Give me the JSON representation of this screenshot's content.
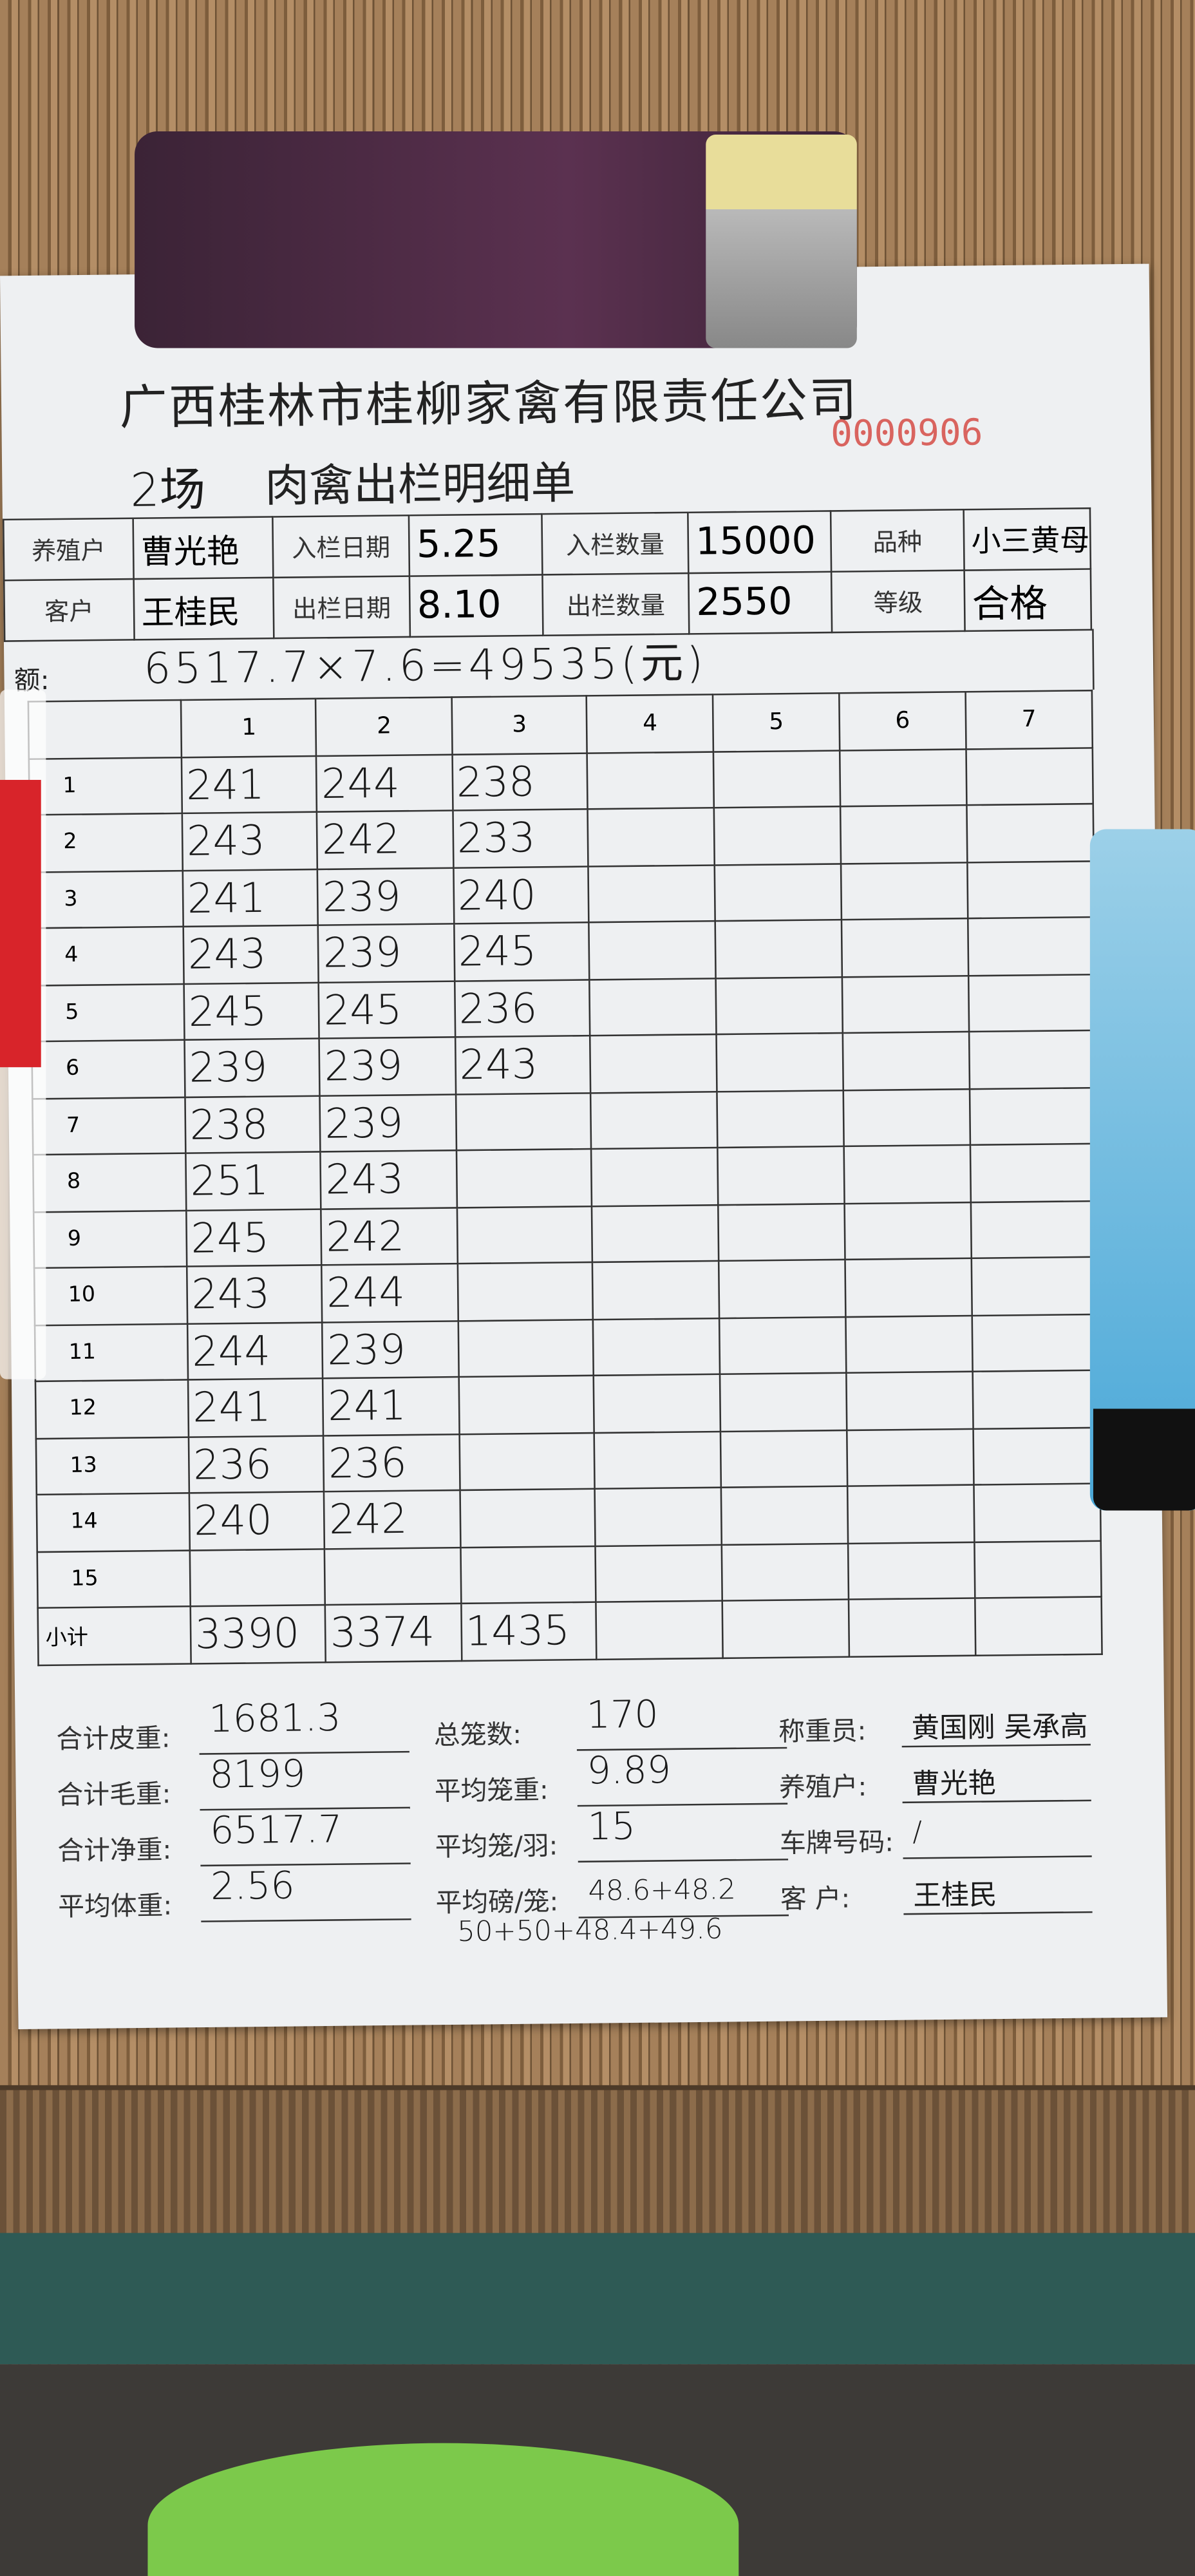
{
  "document": {
    "company": "广西桂林市桂柳家禽有限责任公司",
    "serial_no": "0000906",
    "farm_no": "2场",
    "title": "肉禽出栏明细单",
    "info": {
      "farmer_label": "养殖户",
      "farmer": "曹光艳",
      "in_date_label": "入栏日期",
      "in_date": "5.25",
      "in_qty_label": "入栏数量",
      "in_qty": "15000",
      "breed_label": "品种",
      "breed": "小三黄母",
      "customer_label": "客户",
      "customer": "王桂民",
      "out_date_label": "出栏日期",
      "out_date": "8.10",
      "out_qty_label": "出栏数量",
      "out_qty": "2550",
      "grade_label": "等级",
      "grade": "合格"
    },
    "amount_label": "额:",
    "amount": "6517.7×7.6=49535(元)",
    "grid": {
      "columns": [
        "1",
        "2",
        "3",
        "4",
        "5",
        "6",
        "7"
      ],
      "row_labels": [
        "1",
        "2",
        "3",
        "4",
        "5",
        "6",
        "7",
        "8",
        "9",
        "10",
        "11",
        "12",
        "13",
        "14",
        "15"
      ],
      "values": [
        [
          "241",
          "244",
          "238"
        ],
        [
          "243",
          "242",
          "233"
        ],
        [
          "241",
          "239",
          "240"
        ],
        [
          "243",
          "239",
          "245"
        ],
        [
          "245",
          "245",
          "236"
        ],
        [
          "239",
          "239",
          "243"
        ],
        [
          "238",
          "239"
        ],
        [
          "251",
          "243"
        ],
        [
          "245",
          "242"
        ],
        [
          "243",
          "244"
        ],
        [
          "244",
          "239"
        ],
        [
          "241",
          "241"
        ],
        [
          "236",
          "236"
        ],
        [
          "240",
          "242"
        ],
        []
      ],
      "subtotal_label": "小计",
      "subtotals": [
        "3390",
        "3374",
        "1435"
      ]
    },
    "summary": {
      "tare_label": "合计皮重:",
      "tare": "1681.3",
      "cages_label": "总笼数:",
      "cages": "170",
      "weigher_label": "称重员:",
      "weigher": "黄国刚 吴承高",
      "gross_label": "合计毛重:",
      "gross": "8199",
      "avg_cage_label": "平均笼重:",
      "avg_cage": "9.89",
      "farmer_label": "养殖户:",
      "farmer": "曹光艳",
      "net_label": "合计净重:",
      "net": "6517.7",
      "per_cage_label": "平均笼/羽:",
      "per_cage": "15",
      "plate_label": "车牌号码:",
      "plate": "/",
      "avg_weight_label": "平均体重:",
      "avg_weight": "2.56",
      "avg_lb_label": "平均磅/笼:",
      "avg_lb": "48.6+48.2",
      "avg_lb_2": "50+50+48.4+49.6",
      "customer_label": "客  户:",
      "customer": "王桂民"
    }
  }
}
